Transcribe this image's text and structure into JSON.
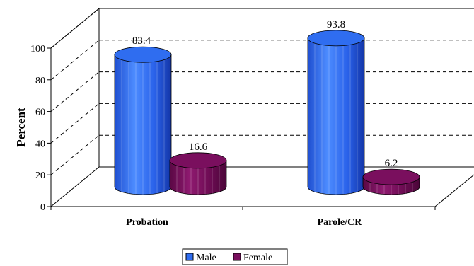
{
  "chart_data": {
    "type": "bar",
    "style": "3d-cylinder",
    "categories": [
      "Probation",
      "Parole/CR"
    ],
    "series": [
      {
        "name": "Male",
        "values": [
          83.4,
          93.8
        ],
        "color": "#2f6df0"
      },
      {
        "name": "Female",
        "values": [
          16.6,
          6.2
        ],
        "color": "#7a0f5e"
      }
    ],
    "data_labels": [
      "83.4",
      "16.6",
      "93.8",
      "6.2"
    ],
    "ylabel": "Percent",
    "xlabel": "",
    "ylim": [
      0,
      100
    ],
    "yticks": [
      "0",
      "20",
      "40",
      "60",
      "80",
      "100"
    ],
    "grid": true,
    "legend_position": "bottom"
  }
}
